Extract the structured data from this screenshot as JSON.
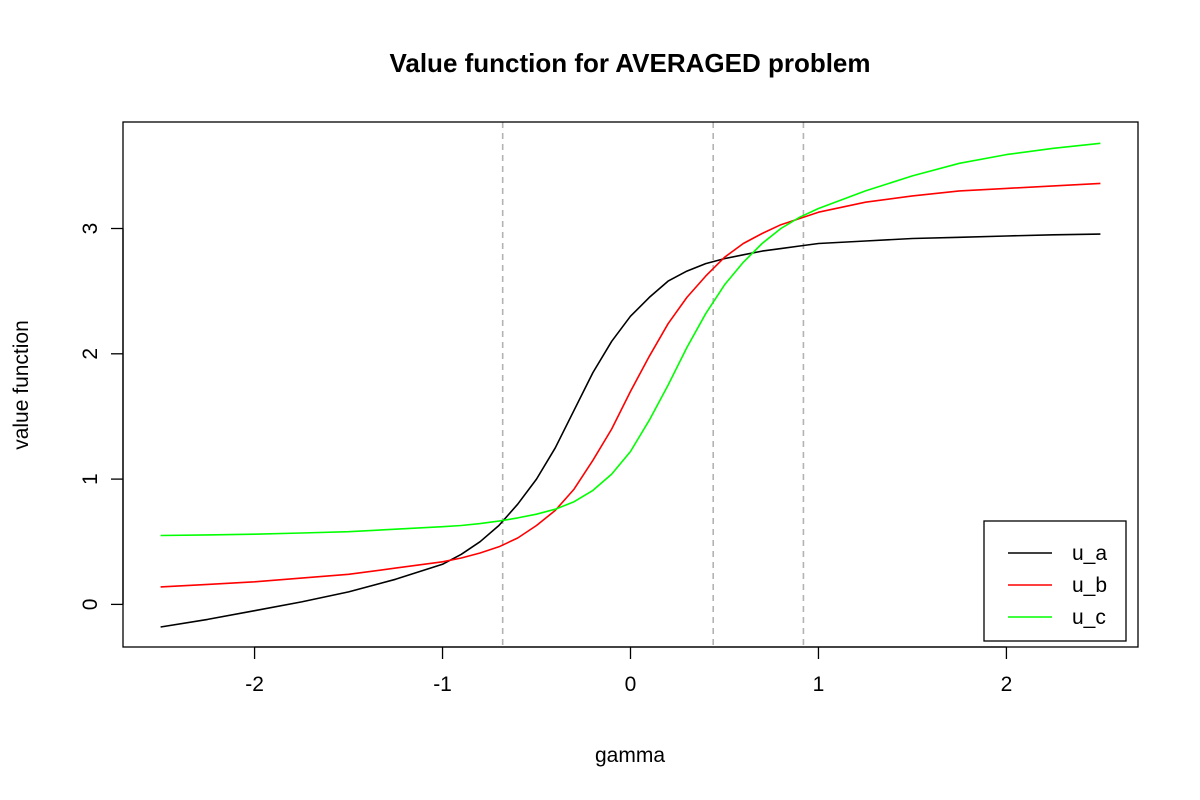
{
  "chart_data": {
    "type": "line",
    "title": "Value function for AVERAGED problem",
    "xlabel": "gamma",
    "ylabel": "value function",
    "xlim": [
      -2.7,
      2.7
    ],
    "ylim": [
      -0.34,
      3.85
    ],
    "xticks": [
      -2,
      -1,
      0,
      1,
      2
    ],
    "yticks": [
      0,
      1,
      2,
      3
    ],
    "grid": false,
    "legend_position": "bottom-right",
    "vlines": [
      -0.68,
      0.44,
      0.92
    ],
    "x": [
      -2.5,
      -2.25,
      -2.0,
      -1.75,
      -1.5,
      -1.25,
      -1.0,
      -0.9,
      -0.8,
      -0.7,
      -0.6,
      -0.5,
      -0.4,
      -0.3,
      -0.2,
      -0.1,
      0.0,
      0.1,
      0.2,
      0.3,
      0.4,
      0.5,
      0.6,
      0.7,
      0.8,
      0.9,
      1.0,
      1.25,
      1.5,
      1.75,
      2.0,
      2.25,
      2.5
    ],
    "series": [
      {
        "name": "u_a",
        "color": "#000000",
        "values": [
          -0.18,
          -0.12,
          -0.05,
          0.02,
          0.1,
          0.2,
          0.32,
          0.4,
          0.5,
          0.63,
          0.8,
          1.0,
          1.25,
          1.55,
          1.85,
          2.1,
          2.3,
          2.45,
          2.58,
          2.66,
          2.72,
          2.76,
          2.79,
          2.82,
          2.84,
          2.86,
          2.88,
          2.9,
          2.92,
          2.93,
          2.94,
          2.95,
          2.955
        ]
      },
      {
        "name": "u_b",
        "color": "#ff0000",
        "values": [
          0.14,
          0.16,
          0.18,
          0.21,
          0.24,
          0.29,
          0.34,
          0.37,
          0.41,
          0.46,
          0.53,
          0.63,
          0.75,
          0.92,
          1.15,
          1.4,
          1.7,
          1.98,
          2.24,
          2.45,
          2.62,
          2.77,
          2.88,
          2.96,
          3.03,
          3.08,
          3.13,
          3.21,
          3.26,
          3.3,
          3.32,
          3.34,
          3.36
        ]
      },
      {
        "name": "u_c",
        "color": "#00ff00",
        "values": [
          0.55,
          0.555,
          0.56,
          0.57,
          0.58,
          0.6,
          0.62,
          0.63,
          0.645,
          0.665,
          0.69,
          0.72,
          0.76,
          0.82,
          0.91,
          1.04,
          1.22,
          1.47,
          1.75,
          2.05,
          2.32,
          2.55,
          2.73,
          2.88,
          3.0,
          3.09,
          3.16,
          3.3,
          3.42,
          3.52,
          3.59,
          3.64,
          3.68
        ]
      }
    ]
  }
}
